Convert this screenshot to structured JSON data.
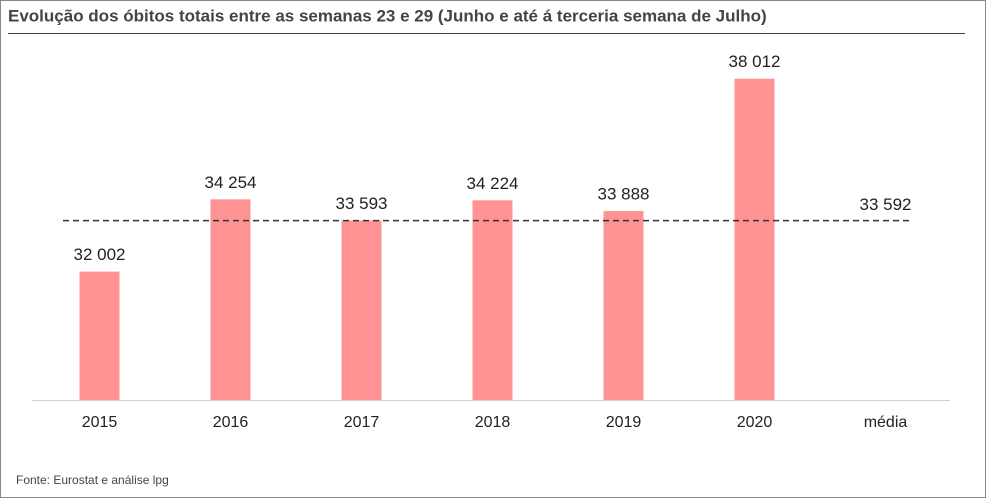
{
  "chart_data": {
    "type": "bar",
    "title": "Evolução dos óbitos totais entre as semanas 23 e 29 (Junho e até á terceria semana de Julho)",
    "categories": [
      "2015",
      "2016",
      "2017",
      "2018",
      "2019",
      "2020",
      "média"
    ],
    "values": [
      32002,
      34254,
      33593,
      34224,
      33888,
      38012,
      null
    ],
    "value_labels": [
      "32 002",
      "34 254",
      "33 593",
      "34 224",
      "33 888",
      "38 012",
      null
    ],
    "color": "#ff9393",
    "average": {
      "value": 33592,
      "label": "33 592"
    },
    "ylim": [
      28000,
      39500
    ],
    "source": "Fonte: Eurostat e análise lpg"
  }
}
